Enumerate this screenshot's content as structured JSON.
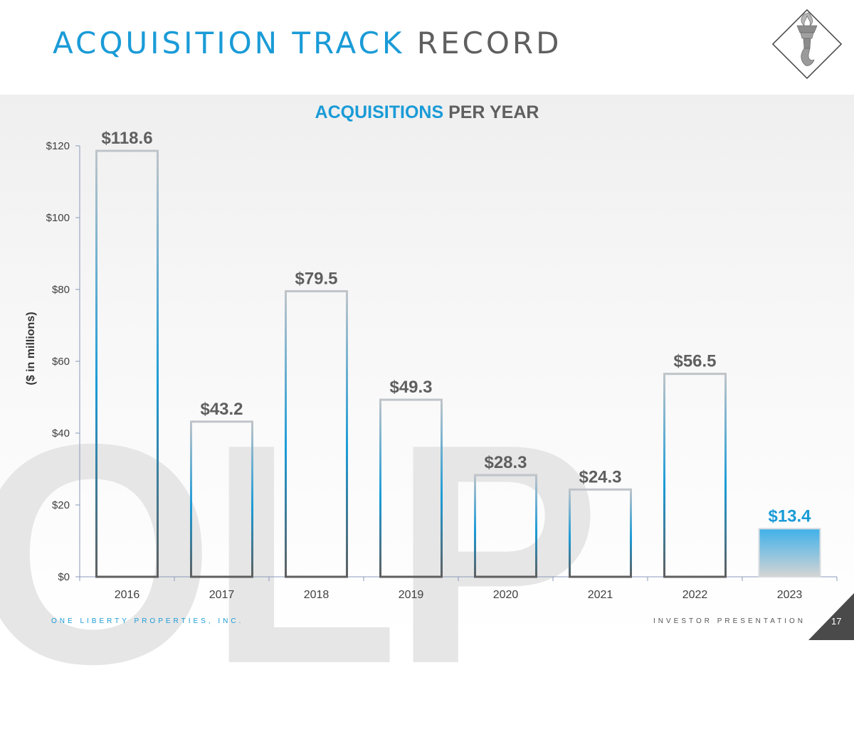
{
  "header": {
    "title_accent": "ACQUISITION TRACK",
    "title_rest": "RECORD"
  },
  "watermark": {
    "text": "OLP"
  },
  "chart_data": {
    "type": "bar",
    "title_accent": "ACQUISITIONS",
    "title_rest": "PER YEAR",
    "xlabel": "",
    "ylabel": "($ in millions)",
    "categories": [
      "2016",
      "2017",
      "2018",
      "2019",
      "2020",
      "2021",
      "2022",
      "2023"
    ],
    "values": [
      118.6,
      43.2,
      79.5,
      49.3,
      28.3,
      24.3,
      56.5,
      13.4
    ],
    "data_labels": [
      "$118.6",
      "$43.2",
      "$79.5",
      "$49.3",
      "$28.3",
      "$24.3",
      "$56.5",
      "$13.4"
    ],
    "ylim": [
      0,
      120
    ],
    "yticks": [
      0,
      20,
      40,
      60,
      80,
      100,
      120
    ],
    "ytick_labels": [
      "$0",
      "$20",
      "$40",
      "$60",
      "$80",
      "$100",
      "$120"
    ],
    "highlight_index": 7,
    "grid": false,
    "colors": {
      "bar_outline_top": "#bfc4c9",
      "bar_outline_mid": "#1a9bd7",
      "bar_outline_bottom": "#5f5f5f",
      "highlight_top": "#3fb1ea",
      "highlight_bottom": "#d4d4d4",
      "label": "#5f5f5f",
      "highlight_label": "#1a9bd7",
      "axis": "#8a9ab8"
    }
  },
  "footer": {
    "company": "ONE LIBERTY PROPERTIES, INC.",
    "doc": "INVESTOR PRESENTATION",
    "page": "17"
  },
  "colors": {
    "accent": "#1a9bd7",
    "text_gray": "#5f5f5f",
    "corner": "#4a4a4a"
  }
}
